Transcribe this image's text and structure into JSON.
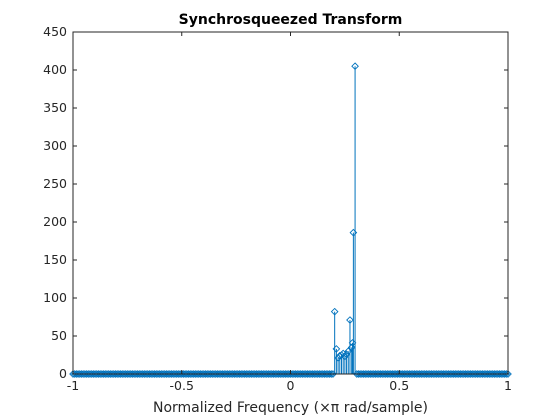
{
  "chart_data": {
    "type": "stem",
    "title": "Synchrosqueezed Transform",
    "xlabel": "Normalized Frequency (×π rad/sample)",
    "ylabel": "",
    "xlim": [
      -1,
      1
    ],
    "ylim": [
      0,
      450
    ],
    "xticks": [
      -1,
      -0.5,
      0,
      0.5,
      1
    ],
    "xtick_labels": [
      "-1",
      "-0.5",
      "0",
      "0.5",
      "1"
    ],
    "yticks": [
      0,
      50,
      100,
      150,
      200,
      250,
      300,
      350,
      400,
      450
    ],
    "ytick_labels": [
      "0",
      "50",
      "100",
      "150",
      "200",
      "250",
      "300",
      "350",
      "400",
      "450"
    ],
    "marker": "diamond",
    "color": "#0072bd",
    "grid": false,
    "sample_step": 0.0078125,
    "baseline_value": 0,
    "nonzero_points": [
      {
        "x": 0.2031,
        "y": 82
      },
      {
        "x": 0.2109,
        "y": 33
      },
      {
        "x": 0.2188,
        "y": 21
      },
      {
        "x": 0.2266,
        "y": 24
      },
      {
        "x": 0.2344,
        "y": 25
      },
      {
        "x": 0.2422,
        "y": 27
      },
      {
        "x": 0.25,
        "y": 23
      },
      {
        "x": 0.2578,
        "y": 26
      },
      {
        "x": 0.2656,
        "y": 30
      },
      {
        "x": 0.2734,
        "y": 71
      },
      {
        "x": 0.2813,
        "y": 35
      },
      {
        "x": 0.2852,
        "y": 41
      },
      {
        "x": 0.2891,
        "y": 186
      },
      {
        "x": 0.2969,
        "y": 405
      }
    ]
  }
}
